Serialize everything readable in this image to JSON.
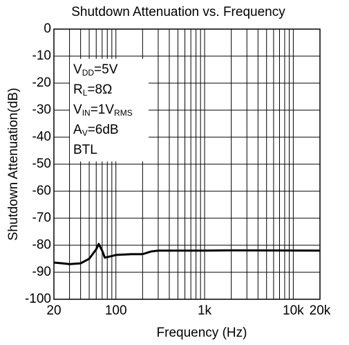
{
  "chart_data": {
    "type": "line",
    "title": "Shutdown Attenuation vs. Frequency",
    "x_label": "Frequency (Hz)",
    "y_label": "Shutdown Attenuation(dB)",
    "xscale": "log",
    "xlim": [
      20,
      20000
    ],
    "ylim": [
      -100,
      0
    ],
    "xticks": [
      20,
      100,
      {
        "value": 1000,
        "label": "1k"
      },
      {
        "value": 10000,
        "label": "10k"
      },
      {
        "value": 20000,
        "label": "20k"
      }
    ],
    "xminor_ticks": [
      30,
      40,
      50,
      60,
      70,
      80,
      90,
      200,
      300,
      400,
      500,
      600,
      700,
      800,
      900,
      2000,
      3000,
      4000,
      5000,
      6000,
      7000,
      8000,
      9000
    ],
    "yticks": [
      0,
      -10,
      -20,
      -30,
      -40,
      -50,
      -60,
      -70,
      -80,
      -90,
      -100
    ],
    "grid": true,
    "series": [
      {
        "color": "#000000",
        "x": [
          20,
          25,
          30,
          40,
          50,
          60,
          64,
          70,
          75,
          90,
          100,
          150,
          200,
          250,
          300,
          1000,
          2000,
          20000
        ],
        "values": [
          -86.4,
          -86.7,
          -87,
          -86.7,
          -85,
          -81.5,
          -79.5,
          -82,
          -84.6,
          -84,
          -83.6,
          -83.3,
          -83.3,
          -82.3,
          -82,
          -82,
          -81.9,
          -82
        ]
      }
    ],
    "annotation": [
      [
        {
          "text": "V"
        },
        {
          "text": "DD",
          "sub": true
        },
        {
          "text": "=5V"
        }
      ],
      [
        {
          "text": "R"
        },
        {
          "text": "L",
          "sub": true
        },
        {
          "text": "=8Ω"
        }
      ],
      [
        {
          "text": "V"
        },
        {
          "text": "IN",
          "sub": true
        },
        {
          "text": "=1V"
        },
        {
          "text": "RMS",
          "sub": true
        }
      ],
      [
        {
          "text": "A"
        },
        {
          "text": "V",
          "sub": true
        },
        {
          "text": "=6dB"
        }
      ],
      [
        {
          "text": "BTL"
        }
      ]
    ]
  }
}
